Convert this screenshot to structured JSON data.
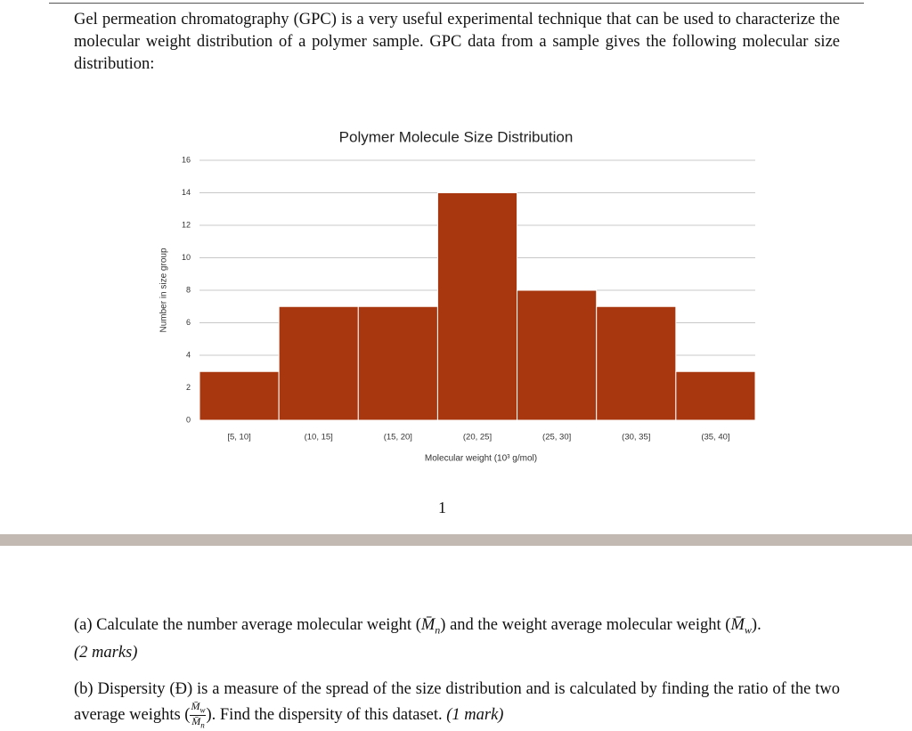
{
  "intro": "Gel permeation chromatography (GPC) is a very useful experimental technique that can be used to characterize the molecular weight distribution of a polymer sample. GPC data from a sample gives the following molecular size distribution:",
  "chart_data": {
    "type": "bar",
    "title": "Polymer Molecule Size Distribution",
    "x_label": "Molecular weight (10³ g/mol)",
    "y_label": "Number in size group",
    "categories": [
      "[5, 10]",
      "(10, 15]",
      "(15, 20]",
      "(20, 25]",
      "(25, 30]",
      "(30, 35]",
      "(35, 40]"
    ],
    "values": [
      3,
      7,
      7,
      14,
      8,
      7,
      3
    ],
    "color": "#a8370f",
    "ylim": [
      0,
      16
    ],
    "yticks": [
      0,
      2,
      4,
      6,
      8,
      10,
      12,
      14,
      16
    ],
    "grid": true
  },
  "page_number": "1",
  "question_a": {
    "text1": "(a) Calculate the number average molecular weight (",
    "sym1": "M̄",
    "sub1": "n",
    "text2": ") and the weight average molecular weight (",
    "sym2": "M̄",
    "sub2": "w",
    "text3": ").",
    "marks": "(2 marks)"
  },
  "question_b": {
    "text1": "(b) Dispersity (Đ) is a measure of the spread of the size distribution and is calculated by finding the ratio of the two average weights (",
    "num_sym": "M̄",
    "num_sub": "w",
    "den_sym": "M̄",
    "den_sub": "n",
    "text2": "). Find the dispersity of this dataset.",
    "marks": "(1 mark)"
  }
}
